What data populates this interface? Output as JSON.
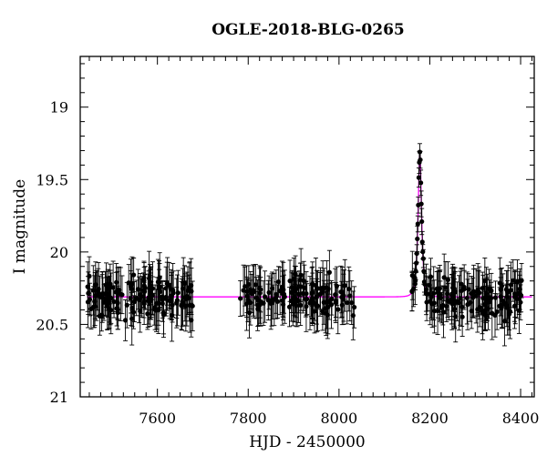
{
  "chart_data": {
    "type": "scatter",
    "title": "OGLE-2018-BLG-0265",
    "xlabel": "HJD - 2450000",
    "ylabel": "I magnitude",
    "xlim": [
      7430,
      8430
    ],
    "ylim": [
      21.0,
      18.65
    ],
    "y_inverted": true,
    "xticks": [
      7600,
      7800,
      8000,
      8200,
      8400
    ],
    "yticks": [
      19,
      19.5,
      20,
      20.5,
      21
    ],
    "x_tick_labels": [
      "7600",
      "7800",
      "8000",
      "8200",
      "8400"
    ],
    "y_tick_labels": [
      "19",
      "19.5",
      "20",
      "20.5",
      "21"
    ],
    "grid": false,
    "series": [
      {
        "kind": "points-with-errorbars",
        "color": "#000000",
        "season1_range": [
          7445,
          7680
        ],
        "season2_range": [
          7782,
          8035
        ],
        "season3_range": [
          8160,
          8405
        ],
        "baseline_mag": 20.31,
        "peak_hjd": 8178,
        "peak_mag": 19.3,
        "typical_error": 0.14,
        "scatter": 0.13
      },
      {
        "kind": "model-curve",
        "color": "#ff00ff",
        "baseline_mag": 20.31,
        "peak_hjd": 8178,
        "peak_mag": 19.3,
        "tE_days": 7
      }
    ]
  },
  "colors": {
    "data": "#000000",
    "model": "#ff00ff"
  }
}
